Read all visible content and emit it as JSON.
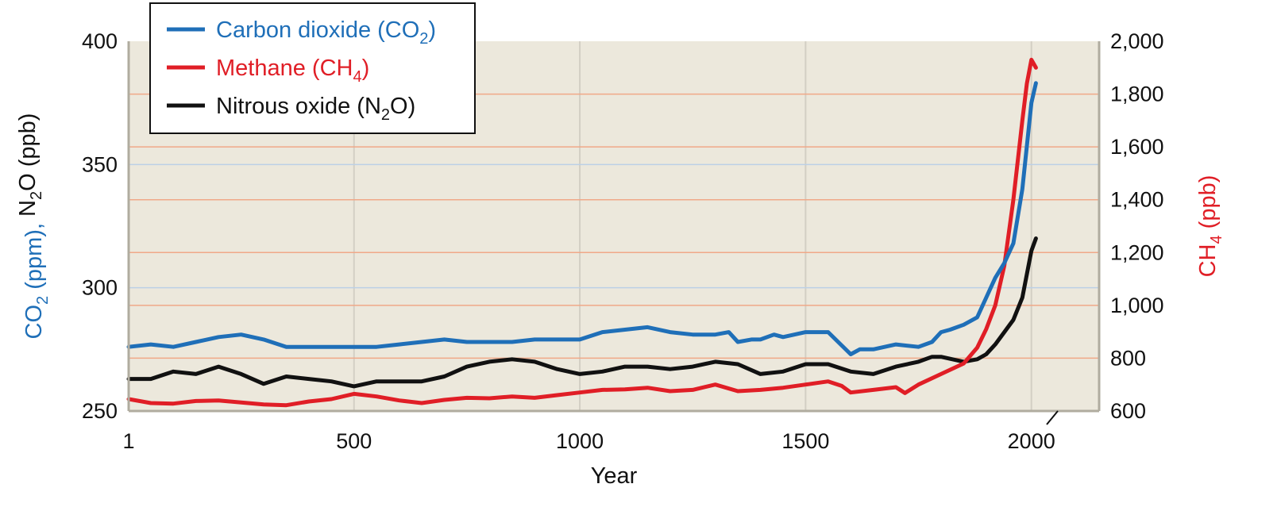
{
  "chart_data": {
    "type": "line",
    "xlabel": "Year",
    "xlim": [
      1,
      2150
    ],
    "x_ticks": [
      "1",
      "500",
      "1000",
      "1500",
      "2000"
    ],
    "y_left": {
      "label_parts": [
        "CO",
        "2",
        " (ppm), ",
        "N",
        "2",
        "O (ppb)"
      ],
      "ylim": [
        250,
        400
      ],
      "ticks": [
        "250",
        "300",
        "350",
        "400"
      ]
    },
    "y_right": {
      "label_parts": [
        "CH",
        "4",
        " (ppb)"
      ],
      "ylim": [
        600,
        2000
      ],
      "ticks": [
        "600",
        "800",
        "1,000",
        "1,200",
        "1,400",
        "1,600",
        "1,800",
        "2,000"
      ]
    },
    "axis_break_near_year": 2000,
    "grid": true,
    "legend_position": "top-left",
    "series": [
      {
        "name_parts": [
          "Carbon dioxide (CO",
          "2",
          ")"
        ],
        "axis": "left",
        "color": "#1f6fb8",
        "x": [
          1,
          50,
          100,
          150,
          200,
          250,
          300,
          350,
          400,
          450,
          500,
          550,
          600,
          650,
          700,
          750,
          800,
          850,
          900,
          950,
          1000,
          1050,
          1100,
          1150,
          1200,
          1250,
          1300,
          1330,
          1350,
          1380,
          1400,
          1430,
          1450,
          1500,
          1550,
          1600,
          1620,
          1650,
          1700,
          1750,
          1780,
          1800,
          1820,
          1850,
          1880,
          1900,
          1920,
          1940,
          1960,
          1980,
          2000,
          2010
        ],
        "y": [
          276,
          277,
          276,
          278,
          280,
          281,
          279,
          276,
          276,
          276,
          276,
          276,
          277,
          278,
          279,
          278,
          278,
          278,
          279,
          279,
          279,
          282,
          283,
          284,
          282,
          281,
          281,
          282,
          278,
          279,
          279,
          281,
          280,
          282,
          282,
          273,
          275,
          275,
          277,
          276,
          278,
          282,
          283,
          285,
          288,
          296,
          304,
          310,
          318,
          340,
          375,
          383
        ]
      },
      {
        "name_parts": [
          "Methane (CH",
          "4",
          ")"
        ],
        "axis": "right",
        "color": "#e01e26",
        "x": [
          1,
          50,
          100,
          150,
          200,
          250,
          300,
          350,
          400,
          450,
          500,
          550,
          600,
          650,
          700,
          750,
          800,
          850,
          900,
          950,
          1000,
          1050,
          1100,
          1150,
          1200,
          1250,
          1300,
          1350,
          1400,
          1450,
          1500,
          1550,
          1580,
          1600,
          1650,
          1700,
          1720,
          1750,
          1800,
          1850,
          1880,
          1900,
          1920,
          1940,
          1960,
          1980,
          1990,
          2000,
          2010
        ],
        "y": [
          645,
          630,
          628,
          638,
          640,
          632,
          625,
          622,
          636,
          645,
          665,
          655,
          640,
          630,
          642,
          650,
          648,
          655,
          650,
          660,
          670,
          680,
          682,
          688,
          675,
          680,
          700,
          675,
          680,
          688,
          700,
          712,
          695,
          670,
          680,
          690,
          668,
          700,
          740,
          780,
          840,
          910,
          1000,
          1150,
          1400,
          1700,
          1840,
          1930,
          1900
        ]
      },
      {
        "name_parts": [
          "Nitrous oxide (N",
          "2",
          "O)"
        ],
        "axis": "left",
        "color": "#111111",
        "x": [
          1,
          50,
          100,
          150,
          200,
          250,
          300,
          350,
          400,
          450,
          500,
          550,
          600,
          650,
          700,
          750,
          800,
          850,
          900,
          950,
          1000,
          1050,
          1100,
          1150,
          1200,
          1250,
          1300,
          1350,
          1400,
          1450,
          1500,
          1550,
          1600,
          1650,
          1700,
          1750,
          1780,
          1800,
          1850,
          1880,
          1900,
          1920,
          1940,
          1960,
          1980,
          2000,
          2010
        ],
        "y": [
          263,
          263,
          266,
          265,
          268,
          265,
          261,
          264,
          263,
          262,
          260,
          262,
          262,
          262,
          264,
          268,
          270,
          271,
          270,
          267,
          265,
          266,
          268,
          268,
          267,
          268,
          270,
          269,
          265,
          266,
          269,
          269,
          266,
          265,
          268,
          270,
          272,
          272,
          270,
          271,
          273,
          277,
          282,
          287,
          296,
          315,
          320
        ]
      }
    ]
  }
}
